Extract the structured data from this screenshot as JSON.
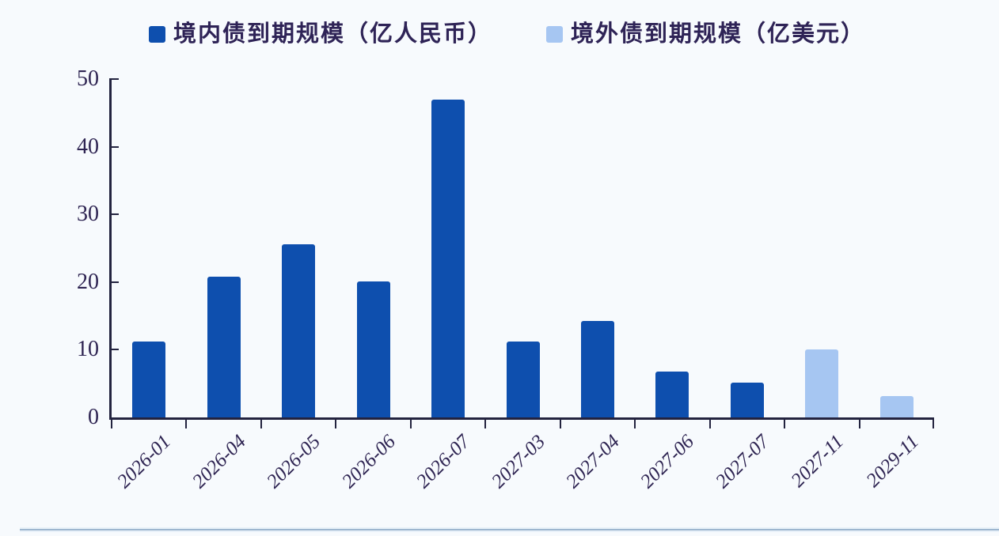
{
  "page": {
    "background_color": "#f7fafd",
    "axis_color": "#23233f",
    "text_color": "#2e2452"
  },
  "chart_data": {
    "type": "bar",
    "title": "",
    "xlabel": "",
    "ylabel": "",
    "categories": [
      "2026-01",
      "2026-04",
      "2026-05",
      "2026-06",
      "2026-07",
      "2027-03",
      "2027-04",
      "2027-06",
      "2027-07",
      "2027-11",
      "2029-11"
    ],
    "series": [
      {
        "name": "境内债到期规模（亿人民币）",
        "color": "#0e4fae",
        "values": [
          11.2,
          20.8,
          25.6,
          20.1,
          47,
          11.2,
          14.3,
          6.8,
          5.1,
          null,
          null
        ]
      },
      {
        "name": "境外债到期规模（亿美元）",
        "color": "#a6c6f2",
        "values": [
          null,
          null,
          null,
          null,
          null,
          null,
          null,
          null,
          null,
          10,
          3.1
        ]
      }
    ],
    "ylim": [
      0,
      50
    ],
    "yticks": [
      0,
      10,
      20,
      30,
      40,
      50
    ],
    "grid": false,
    "legend_position": "top",
    "x_tick_label_rotation_deg": -45
  }
}
